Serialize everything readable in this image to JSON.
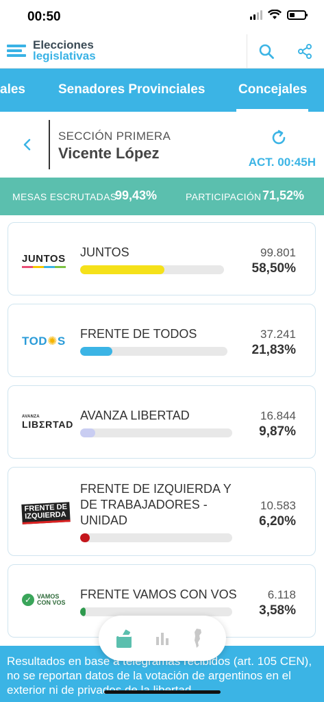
{
  "status_bar": {
    "time": "00:50"
  },
  "header": {
    "logo_line1": "Elecciones",
    "logo_line2": "legislativas",
    "search_icon": "search-icon",
    "share_icon": "share-icon"
  },
  "tabs": [
    {
      "label": "ales"
    },
    {
      "label": "Senadores Provinciales"
    },
    {
      "label": "Concejales",
      "active": true
    }
  ],
  "section": {
    "label": "SECCIÓN PRIMERA",
    "name": "Vicente López",
    "update": "ACT. 00:45H"
  },
  "stats": {
    "mesas_label": "MESAS ESCRUTADAS",
    "mesas_value": "99,43%",
    "participacion_label": "PARTICIPACIÓN",
    "participacion_value": "71,52%"
  },
  "results": [
    {
      "logo_text": "JUNTOS",
      "name": "JUNTOS",
      "votes": "99.801",
      "pct": "58,50%",
      "share": 0.585,
      "color": "#f5e11a"
    },
    {
      "logo_text": "TODOS",
      "name": "FRENTE DE TODOS",
      "votes": "37.241",
      "pct": "21,83%",
      "share": 0.2183,
      "color": "#3bb4e5"
    },
    {
      "logo_text": "AVANZA LIBERTAD",
      "name": "AVANZA LIBERTAD",
      "votes": "16.844",
      "pct": "9,87%",
      "share": 0.0987,
      "color": "#c9cdf2"
    },
    {
      "logo_text": "FRENTE DE IZQUIERDA",
      "name": "FRENTE DE IZQUIERDA Y DE TRABAJADORES - UNIDAD",
      "votes": "10.583",
      "pct": "6,20%",
      "share": 0.062,
      "color": "#c4161c"
    },
    {
      "logo_text": "VAMOS CON VOS",
      "name": "FRENTE VAMOS CON VOS",
      "votes": "6.118",
      "pct": "3,58%",
      "share": 0.0358,
      "color": "#2f9a4e"
    }
  ],
  "footer": {
    "text": "Resultados en base a telegramas recibidos (art. 105 CEN), no se reportan datos de la votación de argentinos en el exterior ni de privados de la libertad."
  },
  "float_nav": {
    "items": [
      "ballot-icon",
      "bar-chart-icon",
      "map-argentina-icon"
    ]
  }
}
